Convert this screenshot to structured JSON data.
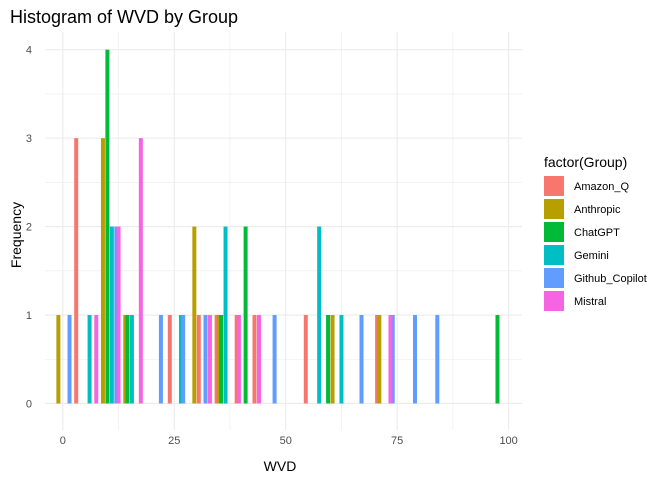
{
  "chart_data": {
    "type": "bar",
    "title": "Histogram of WVD by Group",
    "xlabel": "WVD",
    "ylabel": "Frequency",
    "xlim": [
      -4,
      103
    ],
    "ylim": [
      -0.3,
      4.2
    ],
    "x_ticks": [
      0,
      25,
      50,
      75,
      100
    ],
    "y_ticks": [
      0,
      1,
      2,
      3,
      4
    ],
    "grid": true,
    "legend": {
      "title": "factor(Group)",
      "position": "right"
    },
    "series": [
      {
        "name": "Amazon_Q",
        "color": "#F8766D",
        "bars": [
          {
            "x": 3,
            "y": 3
          },
          {
            "x": 24,
            "y": 1
          },
          {
            "x": 30.5,
            "y": 1
          },
          {
            "x": 34.5,
            "y": 1
          },
          {
            "x": 39,
            "y": 1
          },
          {
            "x": 43,
            "y": 1
          },
          {
            "x": 54.5,
            "y": 1
          },
          {
            "x": 70.5,
            "y": 1
          }
        ]
      },
      {
        "name": "Anthropic",
        "color": "#B79F00",
        "bars": [
          {
            "x": -1,
            "y": 1
          },
          {
            "x": 9,
            "y": 3
          },
          {
            "x": 14,
            "y": 1
          },
          {
            "x": 29.5,
            "y": 2
          },
          {
            "x": 35,
            "y": 1
          },
          {
            "x": 60.5,
            "y": 1
          },
          {
            "x": 71,
            "y": 1
          }
        ]
      },
      {
        "name": "ChatGPT",
        "color": "#00BA38",
        "bars": [
          {
            "x": 10,
            "y": 4
          },
          {
            "x": 14.5,
            "y": 1
          },
          {
            "x": 35.5,
            "y": 1
          },
          {
            "x": 41,
            "y": 2
          },
          {
            "x": 59.5,
            "y": 1
          },
          {
            "x": 97.5,
            "y": 1
          }
        ]
      },
      {
        "name": "Gemini",
        "color": "#00BFC4",
        "bars": [
          {
            "x": 6,
            "y": 1
          },
          {
            "x": 11,
            "y": 2
          },
          {
            "x": 15.5,
            "y": 1
          },
          {
            "x": 26.5,
            "y": 1
          },
          {
            "x": 36.5,
            "y": 2
          },
          {
            "x": 57.5,
            "y": 2
          },
          {
            "x": 62.5,
            "y": 1
          }
        ]
      },
      {
        "name": "Github_Copilot",
        "color": "#619CFF",
        "bars": [
          {
            "x": 1.5,
            "y": 1
          },
          {
            "x": 12,
            "y": 2
          },
          {
            "x": 22,
            "y": 1
          },
          {
            "x": 27,
            "y": 1
          },
          {
            "x": 32,
            "y": 1
          },
          {
            "x": 47.5,
            "y": 1
          },
          {
            "x": 67,
            "y": 1
          },
          {
            "x": 74,
            "y": 1
          },
          {
            "x": 79,
            "y": 1
          },
          {
            "x": 84,
            "y": 1
          }
        ]
      },
      {
        "name": "Mistral",
        "color": "#F564E3",
        "bars": [
          {
            "x": 7.5,
            "y": 1
          },
          {
            "x": 12.5,
            "y": 2
          },
          {
            "x": 17.5,
            "y": 3
          },
          {
            "x": 33,
            "y": 1
          },
          {
            "x": 39.5,
            "y": 1
          },
          {
            "x": 44,
            "y": 1
          },
          {
            "x": 73.5,
            "y": 1
          }
        ]
      }
    ]
  }
}
